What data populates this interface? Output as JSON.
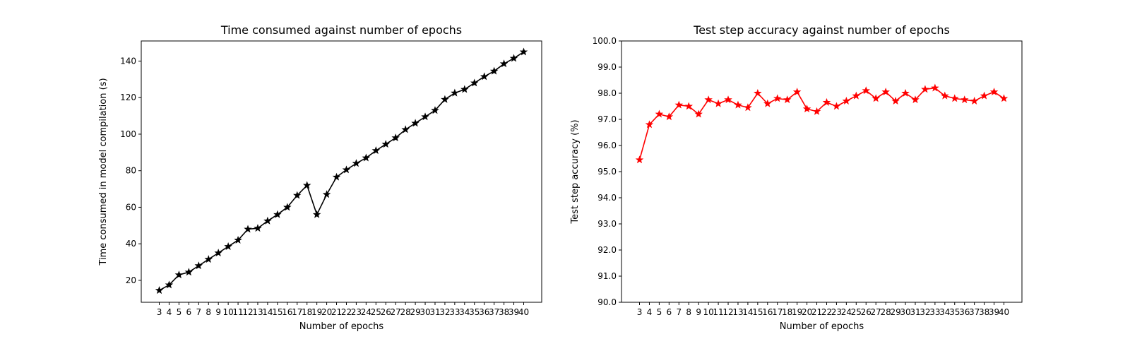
{
  "chart_data": [
    {
      "type": "line",
      "title": "Time consumed against number of epochs",
      "xlabel": "Number of epochs",
      "ylabel": "Time consumed in model compilation (s)",
      "x": [
        3,
        4,
        5,
        6,
        7,
        8,
        9,
        10,
        11,
        12,
        13,
        14,
        15,
        16,
        17,
        18,
        19,
        20,
        21,
        22,
        23,
        24,
        25,
        26,
        27,
        28,
        29,
        30,
        31,
        32,
        33,
        34,
        35,
        36,
        37,
        38,
        39,
        40
      ],
      "ylim": [
        8,
        151
      ],
      "yticks": [
        20,
        40,
        60,
        80,
        100,
        120,
        140
      ],
      "ytick_labels": [
        "20",
        "40",
        "60",
        "80",
        "100",
        "120",
        "140"
      ],
      "series": [
        {
          "color": "#000000",
          "marker": "star",
          "values": [
            14.5,
            17.5,
            23,
            24.5,
            28,
            31.5,
            35,
            38.5,
            42,
            48,
            48.5,
            52.5,
            56,
            60,
            66.5,
            72,
            56,
            67,
            76.5,
            80.5,
            84,
            87,
            91,
            94.5,
            98,
            102.5,
            106,
            109.5,
            113,
            119,
            122.5,
            124.5,
            128,
            131.5,
            134.5,
            138.5,
            141.5,
            145
          ]
        }
      ],
      "grid": false
    },
    {
      "type": "line",
      "title": "Test step accuracy against number of epochs",
      "xlabel": "Number of epochs",
      "ylabel": "Test step accuracy (%)",
      "x": [
        3,
        4,
        5,
        6,
        7,
        8,
        9,
        10,
        11,
        12,
        13,
        14,
        15,
        16,
        17,
        18,
        19,
        20,
        21,
        22,
        23,
        24,
        25,
        26,
        27,
        28,
        29,
        30,
        31,
        32,
        33,
        34,
        35,
        36,
        37,
        38,
        39,
        40
      ],
      "ylim": [
        90.0,
        100.0
      ],
      "yticks": [
        90,
        91,
        92,
        93,
        94,
        95,
        96,
        97,
        98,
        99,
        100
      ],
      "ytick_labels": [
        "90.0",
        "91.0",
        "92.0",
        "93.0",
        "94.0",
        "95.0",
        "96.0",
        "97.0",
        "98.0",
        "99.0",
        "100.0"
      ],
      "series": [
        {
          "color": "#ff0000",
          "marker": "star",
          "values": [
            95.45,
            96.8,
            97.2,
            97.1,
            97.55,
            97.5,
            97.2,
            97.75,
            97.6,
            97.75,
            97.55,
            97.45,
            98.0,
            97.6,
            97.8,
            97.75,
            98.05,
            97.4,
            97.3,
            97.65,
            97.5,
            97.7,
            97.9,
            98.1,
            97.8,
            98.05,
            97.7,
            98.0,
            97.75,
            98.15,
            98.2,
            97.9,
            97.8,
            97.75,
            97.7,
            97.9,
            98.05,
            97.8
          ]
        }
      ],
      "grid": false
    }
  ]
}
